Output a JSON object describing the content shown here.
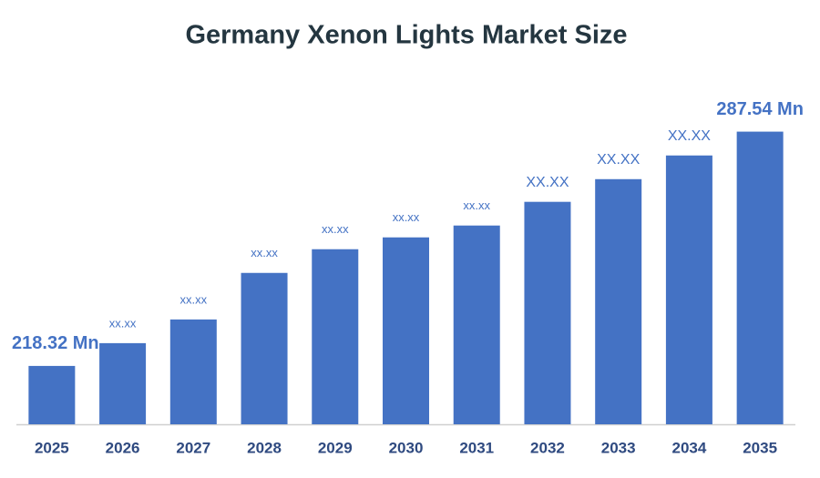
{
  "chart_data": {
    "type": "bar",
    "title": "Germany Xenon Lights Market Size",
    "categories": [
      "2025",
      "2026",
      "2027",
      "2028",
      "2029",
      "2030",
      "2031",
      "2032",
      "2033",
      "2034",
      "2035"
    ],
    "values": [
      218.32,
      225.05,
      232.05,
      245.8,
      252.8,
      256.3,
      259.8,
      266.8,
      273.5,
      280.5,
      287.54
    ],
    "value_labels": [
      "218.32 Mn",
      "xx.xx",
      "xx.xx",
      "xx.xx",
      "xx.xx",
      "xx.xx",
      "xx.xx",
      "XX.XX",
      "XX.XX",
      "XX.XX",
      "287.54 Mn"
    ],
    "color": "#4472c4",
    "ylim": [
      201.08,
      292
    ]
  }
}
